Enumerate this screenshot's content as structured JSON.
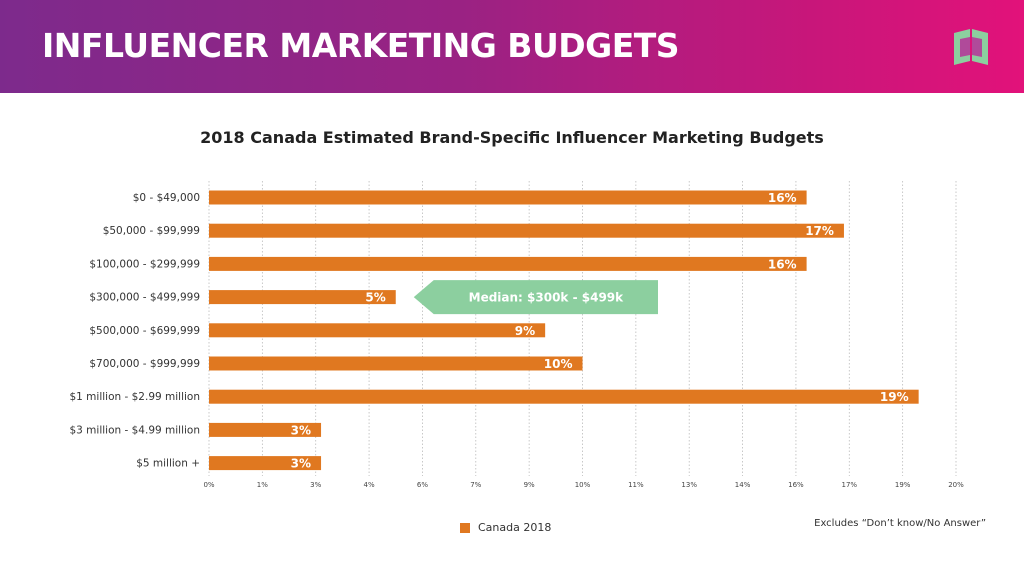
{
  "header": {
    "title": "INFLUENCER MARKETING BUDGETS",
    "logo_icon": "brand-logo-icon"
  },
  "colors": {
    "bar": "#e07820",
    "median_callout": "#8ccf9f",
    "grid": "#bbbbbb",
    "banner_start": "#7d2a8c",
    "banner_end": "#e2127a",
    "logo": "#8ccf9f"
  },
  "chart_data": {
    "type": "bar",
    "orientation": "horizontal",
    "title": "2018 Canada Estimated Brand-Specific Influencer Marketing Budgets",
    "categories": [
      "$0 - $49,000",
      "$50,000 - $99,999",
      "$100,000 - $299,999",
      "$300,000 - $499,999",
      "$500,000 - $699,999",
      "$700,000 - $999,999",
      "$1 million - $2.99 million",
      "$3 million - $4.99 million",
      "$5 million +"
    ],
    "series": [
      {
        "name": "Canada 2018",
        "values": [
          16,
          17,
          16,
          5,
          9,
          10,
          19,
          3,
          3
        ]
      }
    ],
    "data_labels": [
      "16%",
      "17%",
      "16%",
      "5%",
      "9%",
      "10%",
      "19%",
      "3%",
      "3%"
    ],
    "xlim": [
      0,
      20
    ],
    "x_ticks": [
      "0%",
      "1%",
      "3%",
      "4%",
      "6%",
      "7%",
      "9%",
      "10%",
      "11%",
      "13%",
      "14%",
      "16%",
      "17%",
      "19%",
      "20%"
    ],
    "grid": "vertical dotted",
    "annotation": {
      "text": "Median:  $300k - $499k",
      "category_index": 3
    },
    "legend": {
      "position": "bottom-center",
      "label": "Canada 2018"
    },
    "footnote": "Excludes “Don’t know/No Answer”"
  }
}
